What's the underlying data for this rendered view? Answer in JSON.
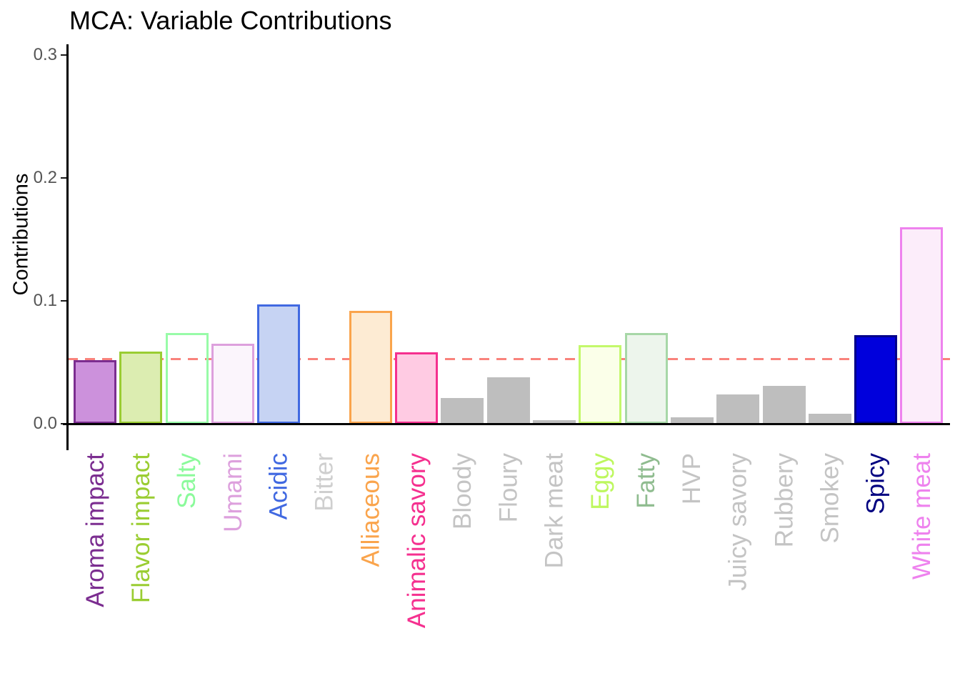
{
  "chart_data": {
    "type": "bar",
    "title": "MCA: Variable Contributions",
    "xlabel": "",
    "ylabel": "Contributions",
    "ylim": [
      0,
      0.31
    ],
    "yticks": [
      0.0,
      0.1,
      0.2,
      0.3
    ],
    "grid": false,
    "legend": "none",
    "reference_line": {
      "value": 0.0526,
      "linetype": "dashed",
      "color": "#F9837C",
      "meaning": "expected average contribution (1/19)"
    },
    "categories": [
      "Aroma impact",
      "Flavor impact",
      "Salty",
      "Umami",
      "Acidic",
      "Bitter",
      "Alliaceous",
      "Animalic savory",
      "Bloody",
      "Floury",
      "Dark meat",
      "Eggy",
      "Fatty",
      "HVP",
      "Juicy savory",
      "Rubbery",
      "Smokey",
      "Spicy",
      "White meat"
    ],
    "values": [
      0.052,
      0.059,
      0.074,
      0.065,
      0.097,
      0.0,
      0.092,
      0.058,
      0.021,
      0.038,
      0.003,
      0.064,
      0.074,
      0.005,
      0.024,
      0.031,
      0.008,
      0.072,
      0.16
    ],
    "styles": [
      {
        "label_color": "#7B2D90",
        "fill": "#CC91DC",
        "border": "#7B2D90"
      },
      {
        "label_color": "#9ACD32",
        "fill": "#DCEDB1",
        "border": "#9ACD32"
      },
      {
        "label_color": "#8BFA9B",
        "fill": "none",
        "border": "#98FBA8"
      },
      {
        "label_color": "#DDA0DD",
        "fill": "#FBF5FC",
        "border": "#DDA0DD"
      },
      {
        "label_color": "#4169E1",
        "fill": "#C6D3F3",
        "border": "#4169E1"
      },
      {
        "label_color": "#CFCFCF",
        "fill": "none",
        "border": "none"
      },
      {
        "label_color": "#FAA44C",
        "fill": "#FDEBD3",
        "border": "#FAA44C"
      },
      {
        "label_color": "#F5308F",
        "fill": "#FFCBE3",
        "border": "#F5308F"
      },
      {
        "label_color": "#C4C4C4",
        "fill": "#BEBEBE",
        "border": "none"
      },
      {
        "label_color": "#C4C4C4",
        "fill": "#BEBEBE",
        "border": "none"
      },
      {
        "label_color": "#C4C4C4",
        "fill": "#BEBEBE",
        "border": "none"
      },
      {
        "label_color": "#BDF75E",
        "fill": "#FBFFE9",
        "border": "#C3F86B"
      },
      {
        "label_color": "#8FBC8F",
        "fill": "#EDF5EC",
        "border": "#A7D7A7"
      },
      {
        "label_color": "#C4C4C4",
        "fill": "#BEBEBE",
        "border": "none"
      },
      {
        "label_color": "#C4C4C4",
        "fill": "#BEBEBE",
        "border": "none"
      },
      {
        "label_color": "#C4C4C4",
        "fill": "#BEBEBE",
        "border": "none"
      },
      {
        "label_color": "#C4C4C4",
        "fill": "#BEBEBE",
        "border": "none"
      },
      {
        "label_color": "#000080",
        "fill": "#0000DC",
        "border": "#00008B"
      },
      {
        "label_color": "#EE82EE",
        "fill": "#FCEDFA",
        "border": "#EE82EE"
      }
    ]
  }
}
